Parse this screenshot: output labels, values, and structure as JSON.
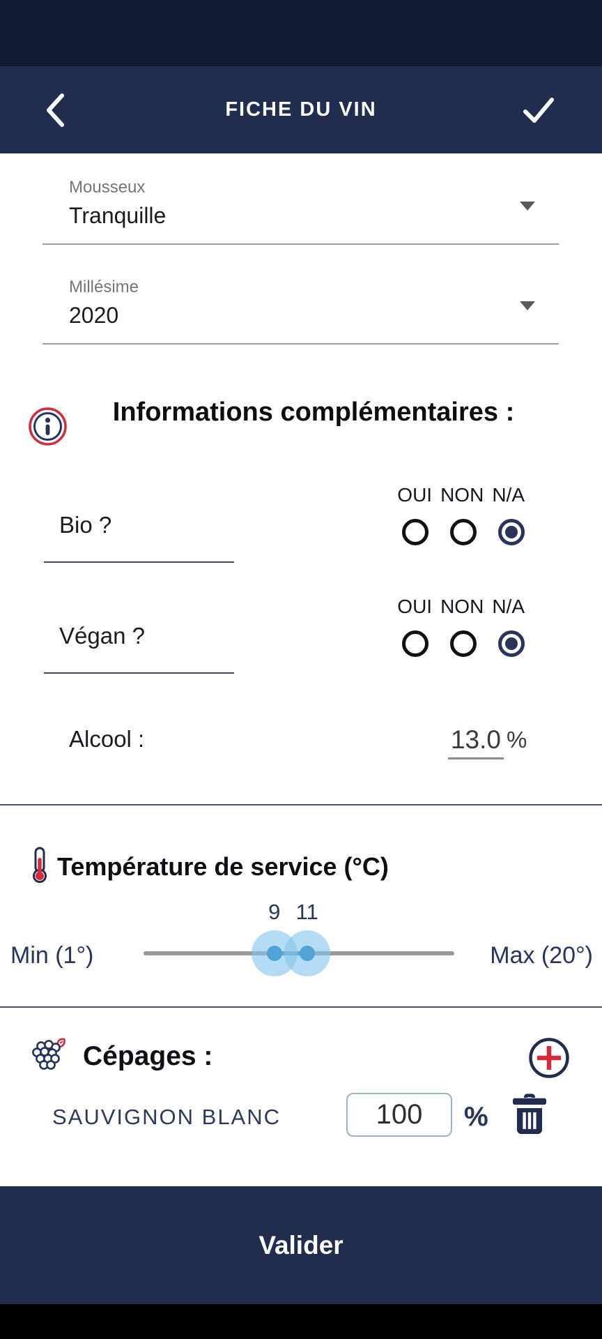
{
  "colors": {
    "status-bar": "#111c33",
    "navy": "#212d4e",
    "text-dark": "#15151d",
    "text-navy": "#27355c",
    "label-gray": "#757575",
    "underline-gray": "#9e9e9e",
    "accent-red": "#d6293a",
    "thumb-blue": "#4fa3d6",
    "track-gray": "#989898"
  },
  "app_bar": {
    "title": "FICHE DU VIN"
  },
  "form": {
    "mousseux": {
      "label": "Mousseux",
      "value": "Tranquille"
    },
    "millesime": {
      "label": "Millésime",
      "value": "2020"
    }
  },
  "info": {
    "heading": "Informations complémentaires :",
    "options": [
      "OUI",
      "NON",
      "N/A"
    ],
    "bio": {
      "label": "Bio ?",
      "selected": "N/A"
    },
    "vegan": {
      "label": "Végan ?",
      "selected": "N/A"
    },
    "alcool": {
      "label": "Alcool :",
      "value": "13.0",
      "unit": "%"
    }
  },
  "temperature": {
    "title": "Température de service (°C)",
    "min_label": "Min (1°)",
    "max_label": "Max (20°)",
    "range_min": 1,
    "range_max": 20,
    "low": 9,
    "high": 11
  },
  "cepages": {
    "title": "Cépages :",
    "items": [
      {
        "name": "SAUVIGNON BLANC",
        "percent": "100",
        "unit": "%"
      }
    ]
  },
  "footer": {
    "submit": "Valider"
  }
}
